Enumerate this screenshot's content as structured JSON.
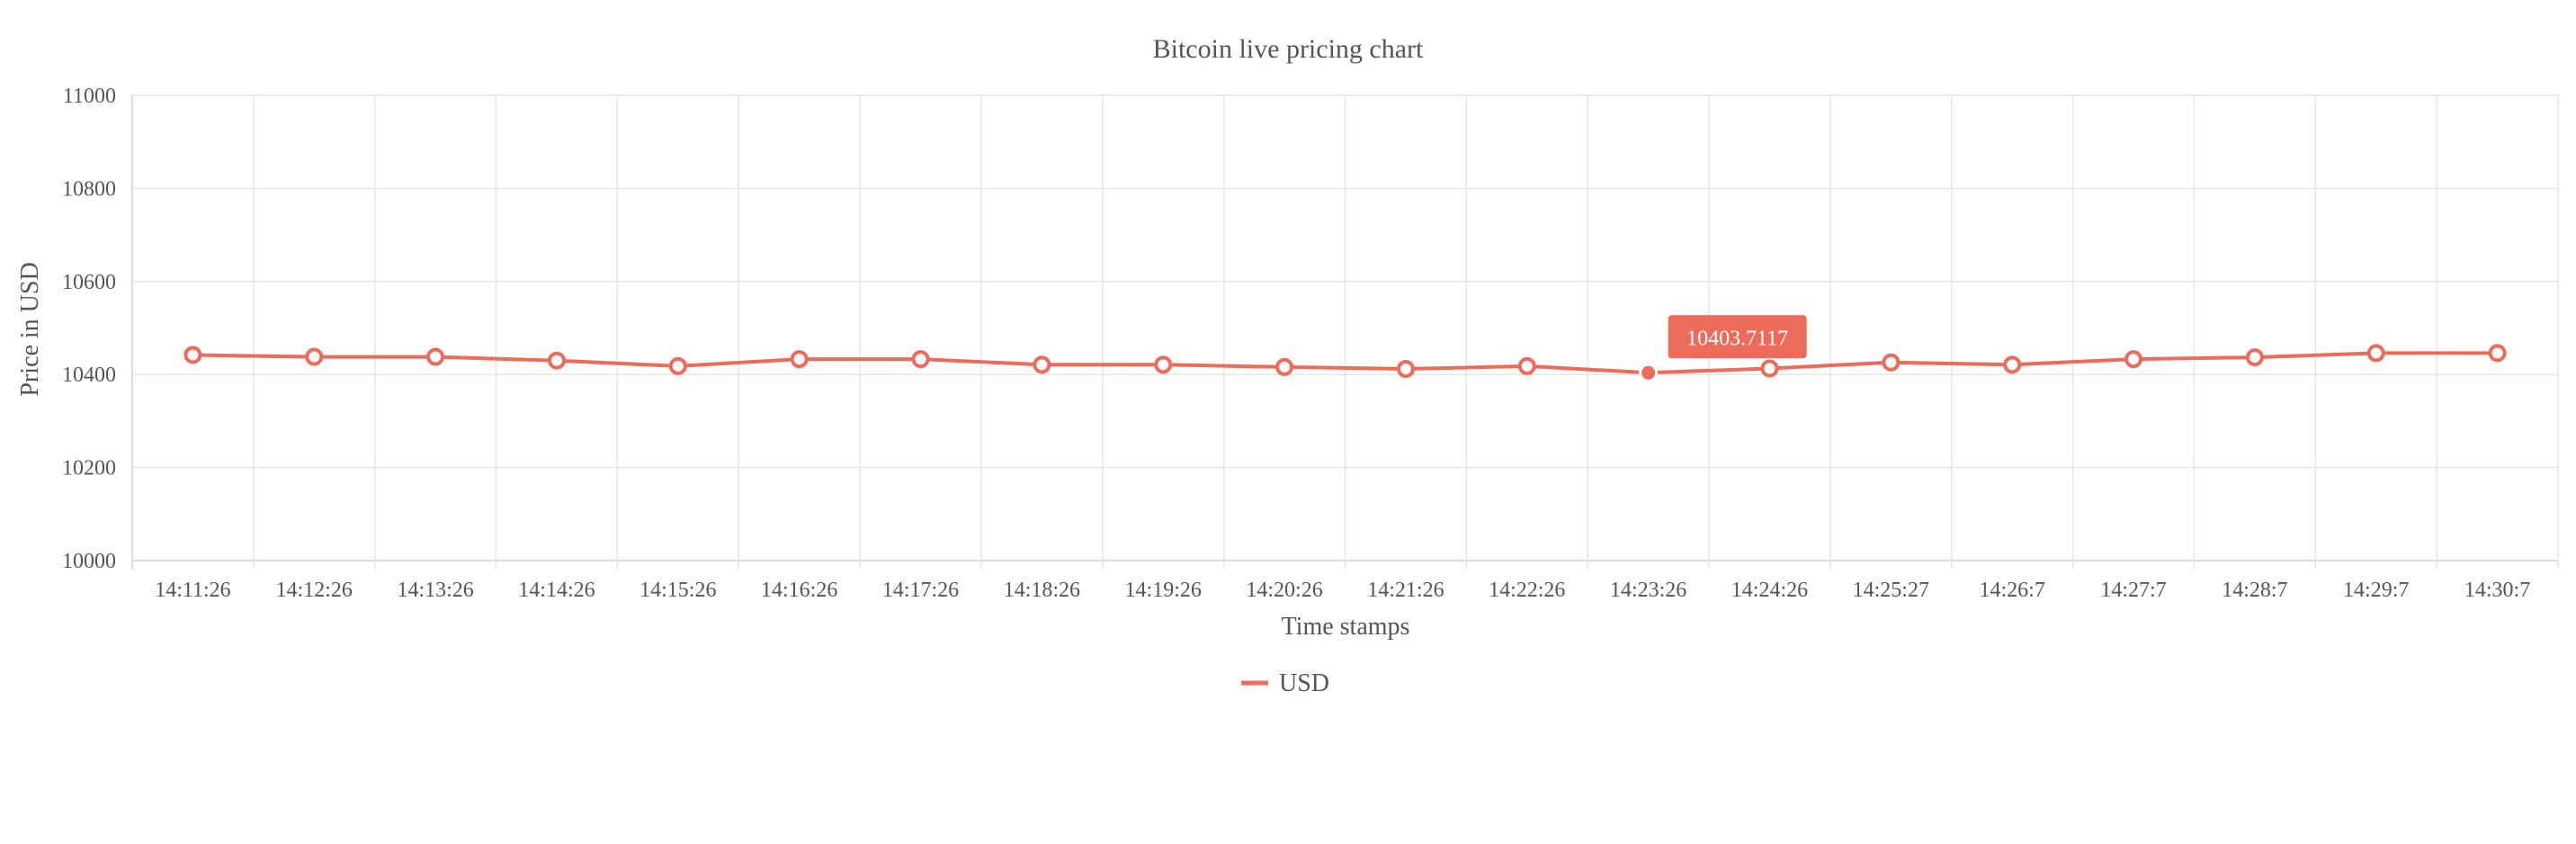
{
  "chart_data": {
    "type": "line",
    "title": "Bitcoin live pricing chart",
    "xlabel": "Time stamps",
    "ylabel": "Price in USD",
    "ylim": [
      10000,
      11000
    ],
    "yticks": [
      10000,
      10200,
      10400,
      10600,
      10800,
      11000
    ],
    "grid": true,
    "legend_position": "bottom",
    "categories": [
      "14:11:26",
      "14:12:26",
      "14:13:26",
      "14:14:26",
      "14:15:26",
      "14:16:26",
      "14:17:26",
      "14:18:26",
      "14:19:26",
      "14:20:26",
      "14:21:26",
      "14:22:26",
      "14:23:26",
      "14:24:26",
      "14:25:27",
      "14:26:7",
      "14:27:7",
      "14:28:7",
      "14:29:7",
      "14:30:7"
    ],
    "series": [
      {
        "name": "USD",
        "color": "#ec6b5b",
        "values": [
          10442,
          10438,
          10438,
          10430,
          10418,
          10433,
          10433,
          10421,
          10421,
          10416,
          10412,
          10418,
          10403.7117,
          10413,
          10426,
          10421,
          10433,
          10437,
          10446,
          10446
        ]
      }
    ],
    "tooltip": {
      "index": 12,
      "text": "10403.7117"
    }
  }
}
